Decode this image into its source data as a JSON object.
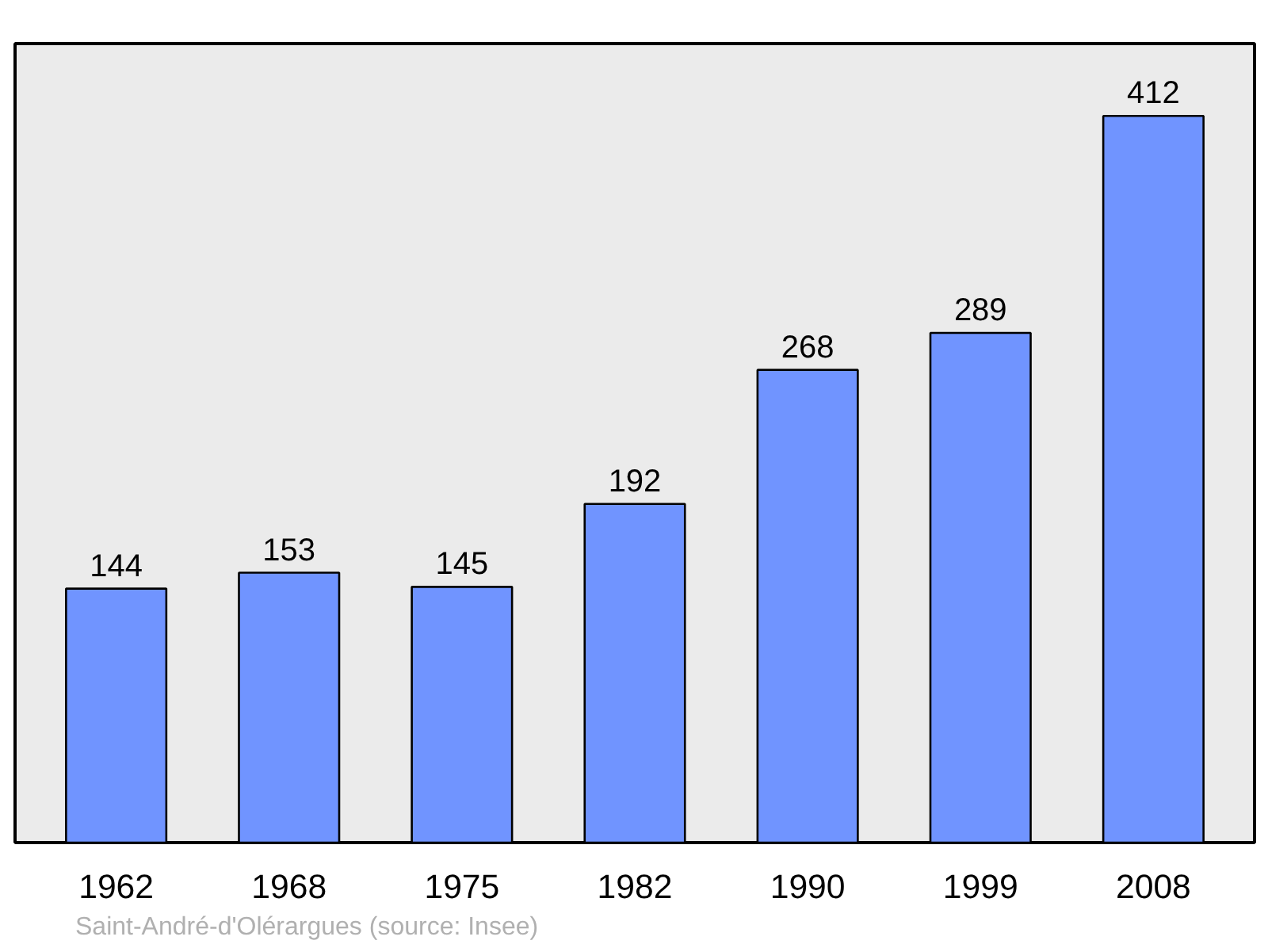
{
  "chart_data": {
    "type": "bar",
    "categories": [
      "1962",
      "1968",
      "1975",
      "1982",
      "1990",
      "1999",
      "2008"
    ],
    "values": [
      144,
      153,
      145,
      192,
      268,
      289,
      412
    ],
    "color": "#7094ff",
    "ylim": [
      0,
      453
    ],
    "data_labels": true,
    "grid": false,
    "tick_labels": "x",
    "annotations": [
      "Saint-André-d'Olérargues    (source: Insee)"
    ]
  }
}
